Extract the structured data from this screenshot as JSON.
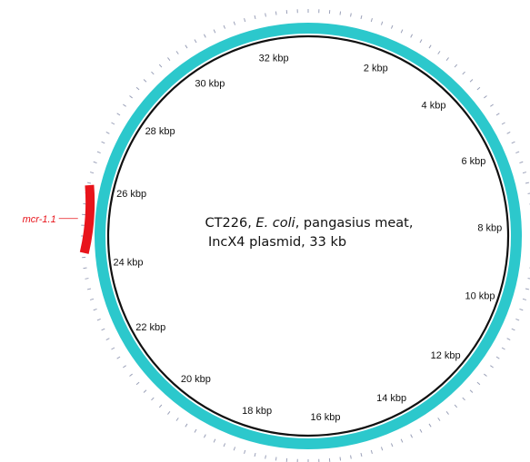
{
  "plasmid": {
    "length_kbp": 33,
    "title_parts": {
      "prefix": "CT226, ",
      "species": "E. coli",
      "suffix": ", pangasius meat,",
      "line2": "IncX4 plasmid, 33 kb"
    },
    "tick_labels": [
      {
        "kbp": 2,
        "text": "2 kbp"
      },
      {
        "kbp": 4,
        "text": "4 kbp"
      },
      {
        "kbp": 6,
        "text": "6 kbp"
      },
      {
        "kbp": 8,
        "text": "8 kbp"
      },
      {
        "kbp": 10,
        "text": "10 kbp"
      },
      {
        "kbp": 12,
        "text": "12 kbp"
      },
      {
        "kbp": 14,
        "text": "14 kbp"
      },
      {
        "kbp": 16,
        "text": "16 kbp"
      },
      {
        "kbp": 18,
        "text": "18 kbp"
      },
      {
        "kbp": 20,
        "text": "20 kbp"
      },
      {
        "kbp": 22,
        "text": "22 kbp"
      },
      {
        "kbp": 24,
        "text": "24 kbp"
      },
      {
        "kbp": 26,
        "text": "26 kbp"
      },
      {
        "kbp": 28,
        "text": "28 kbp"
      },
      {
        "kbp": 30,
        "text": "30 kbp"
      },
      {
        "kbp": 32,
        "text": "32 kbp"
      }
    ],
    "genes": [
      {
        "name": "mcr-1.1",
        "start_kbp": 24.35,
        "end_kbp": 25.95,
        "color": "#e8141b"
      }
    ],
    "colors": {
      "backbone": "#2cc8cc",
      "backbone_edge": "#1aa6aa",
      "inner_ring": "#111111",
      "outer_ticks": "#9aa0b8",
      "gene_label": "#e8141b"
    }
  }
}
